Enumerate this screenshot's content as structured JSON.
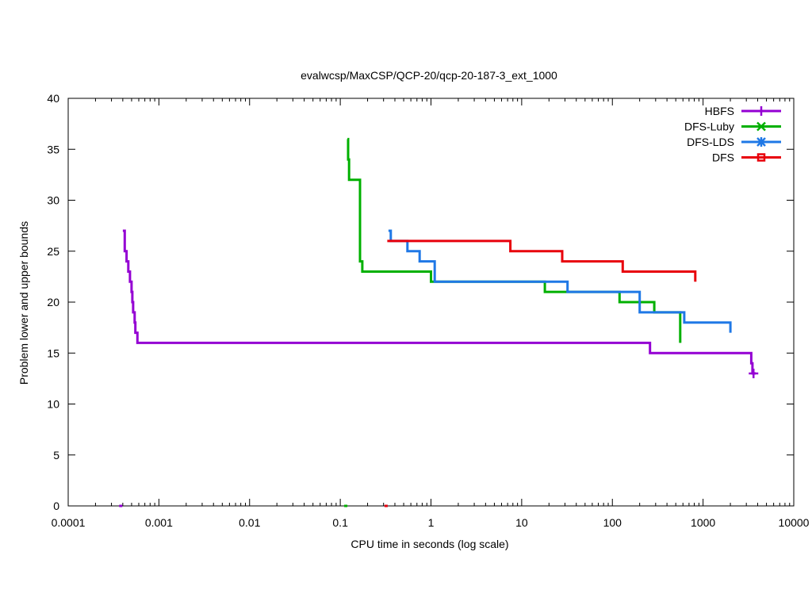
{
  "chart_data": {
    "type": "line",
    "title": "evalwcsp/MaxCSP/QCP-20/qcp-20-187-3_ext_1000",
    "xlabel": "CPU time in seconds (log scale)",
    "ylabel": "Problem lower and upper bounds",
    "x_scale": "log",
    "xlim": [
      0.0001,
      10000
    ],
    "ylim": [
      0,
      40
    ],
    "x_ticks": [
      {
        "value": 0.0001,
        "label": "0.0001"
      },
      {
        "value": 0.001,
        "label": "0.001"
      },
      {
        "value": 0.01,
        "label": "0.01"
      },
      {
        "value": 0.1,
        "label": "0.1"
      },
      {
        "value": 1,
        "label": "1"
      },
      {
        "value": 10,
        "label": "10"
      },
      {
        "value": 100,
        "label": "100"
      },
      {
        "value": 1000,
        "label": "1000"
      },
      {
        "value": 10000,
        "label": "10000"
      }
    ],
    "y_ticks": [
      {
        "value": 0,
        "label": "0"
      },
      {
        "value": 5,
        "label": "5"
      },
      {
        "value": 10,
        "label": "10"
      },
      {
        "value": 15,
        "label": "15"
      },
      {
        "value": 20,
        "label": "20"
      },
      {
        "value": 25,
        "label": "25"
      },
      {
        "value": 30,
        "label": "30"
      },
      {
        "value": 35,
        "label": "35"
      },
      {
        "value": 40,
        "label": "40"
      }
    ],
    "grid": false,
    "legend_position": "top-right",
    "series": [
      {
        "name": "HBFS",
        "color": "#9400d3",
        "marker": "plus",
        "step": true,
        "points": [
          [
            0.0004,
            27
          ],
          [
            0.00042,
            25
          ],
          [
            0.00044,
            24
          ],
          [
            0.00046,
            23
          ],
          [
            0.00048,
            22
          ],
          [
            0.0005,
            21
          ],
          [
            0.00051,
            20
          ],
          [
            0.00052,
            19
          ],
          [
            0.00054,
            18
          ],
          [
            0.00055,
            17
          ],
          [
            0.00058,
            16
          ],
          [
            260,
            15
          ],
          [
            3400,
            14
          ],
          [
            3500,
            13
          ],
          [
            3800,
            13
          ]
        ],
        "end_marker": [
          3600,
          13
        ],
        "lower_bound_point": [
          0.00038,
          0
        ]
      },
      {
        "name": "DFS-Luby",
        "color": "#00b000",
        "marker": "cross",
        "step": true,
        "points": [
          [
            0.12,
            36
          ],
          [
            0.122,
            34
          ],
          [
            0.125,
            32
          ],
          [
            0.165,
            24
          ],
          [
            0.175,
            23
          ],
          [
            1.0,
            22
          ],
          [
            18,
            21
          ],
          [
            120,
            20
          ],
          [
            290,
            19
          ],
          [
            560,
            16
          ]
        ],
        "lower_bound_point": [
          0.115,
          0
        ]
      },
      {
        "name": "DFS-LDS",
        "color": "#1f78e6",
        "marker": "star",
        "step": true,
        "points": [
          [
            0.34,
            27
          ],
          [
            0.36,
            26
          ],
          [
            0.55,
            25
          ],
          [
            0.75,
            24
          ],
          [
            1.1,
            22
          ],
          [
            32,
            21
          ],
          [
            200,
            19
          ],
          [
            620,
            18
          ],
          [
            2000,
            17
          ]
        ],
        "lower_bound_point": [
          0.32,
          0
        ]
      },
      {
        "name": "DFS",
        "color": "#e8000b",
        "marker": "square",
        "step": true,
        "points": [
          [
            0.33,
            26
          ],
          [
            7.5,
            25
          ],
          [
            28,
            24
          ],
          [
            130,
            23
          ],
          [
            820,
            22
          ]
        ],
        "lower_bound_point": [
          0.32,
          0
        ]
      }
    ]
  }
}
